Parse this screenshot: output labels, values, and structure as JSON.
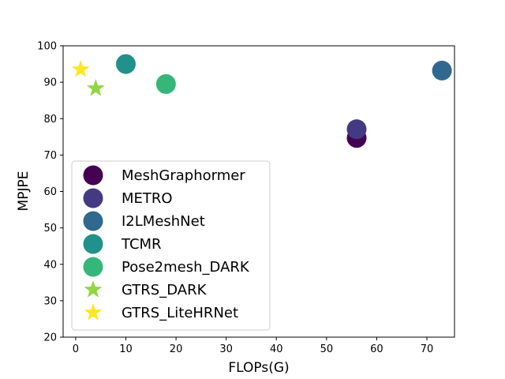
{
  "chart_data": {
    "type": "scatter",
    "title": "",
    "xlabel": "FLOPs(G)",
    "ylabel": "MPJPE",
    "xlim": [
      -2.5,
      75.5
    ],
    "ylim": [
      20,
      100
    ],
    "xticks": [
      0,
      10,
      20,
      30,
      40,
      50,
      60,
      70
    ],
    "yticks": [
      20,
      30,
      40,
      50,
      60,
      70,
      80,
      90,
      100
    ],
    "grid": false,
    "legend_position": "lower-left",
    "series": [
      {
        "name": "MeshGraphormer",
        "marker": "circle",
        "color": "#440154",
        "points": [
          {
            "x": 56,
            "y": 74.7
          }
        ]
      },
      {
        "name": "METRO",
        "marker": "circle",
        "color": "#443983",
        "points": [
          {
            "x": 56,
            "y": 77.1
          }
        ]
      },
      {
        "name": "I2LMeshNet",
        "marker": "circle",
        "color": "#31688e",
        "points": [
          {
            "x": 73,
            "y": 93.2
          }
        ]
      },
      {
        "name": "TCMR",
        "marker": "circle",
        "color": "#21918c",
        "points": [
          {
            "x": 10,
            "y": 95.0
          }
        ]
      },
      {
        "name": "Pose2mesh_DARK",
        "marker": "circle",
        "color": "#35b779",
        "points": [
          {
            "x": 18,
            "y": 89.5
          }
        ]
      },
      {
        "name": "GTRS_DARK",
        "marker": "star",
        "color": "#90d743",
        "points": [
          {
            "x": 4,
            "y": 88.3
          }
        ]
      },
      {
        "name": "GTRS_LiteHRNet",
        "marker": "star",
        "color": "#fde725",
        "points": [
          {
            "x": 1,
            "y": 93.5
          }
        ]
      }
    ]
  }
}
